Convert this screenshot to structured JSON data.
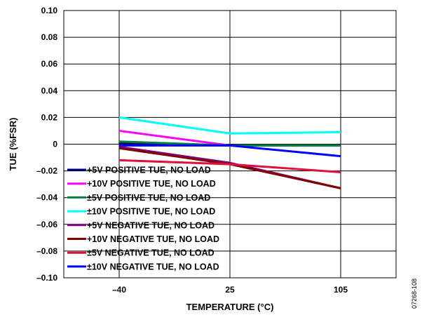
{
  "chart_data": {
    "type": "line",
    "xlabel": "TEMPERATURE (°C)",
    "ylabel": "TUE (%FSR)",
    "x": [
      -40,
      25,
      105
    ],
    "x_tick_labels": [
      "–40",
      "25",
      "105"
    ],
    "ylim": [
      -0.1,
      0.1
    ],
    "y_ticks": [
      0.1,
      0.08,
      0.06,
      0.04,
      0.02,
      0,
      -0.02,
      -0.04,
      -0.06,
      -0.08,
      -0.1
    ],
    "y_tick_labels": [
      "0.10",
      "0.08",
      "0.06",
      "0.04",
      "0.02",
      "0",
      "–0.02",
      "–0.04",
      "–0.06",
      "–0.08",
      "–0.10"
    ],
    "grid": true,
    "legend_position": "bottom-left",
    "series": [
      {
        "name": "+5V POSITIVE TUE, NO LOAD",
        "color": "#000080",
        "values": [
          0.001,
          -0.001,
          -0.001
        ]
      },
      {
        "name": "+10V POSITIVE TUE, NO LOAD",
        "color": "#ff00ff",
        "values": [
          0.01,
          -0.001,
          -0.001
        ]
      },
      {
        "name": "±5V POSITIVE TUE, NO LOAD",
        "color": "#008040",
        "values": [
          0.002,
          -0.001,
          -0.001
        ]
      },
      {
        "name": "±10V POSITIVE TUE, NO LOAD",
        "color": "#00ffff",
        "values": [
          0.02,
          0.008,
          0.009
        ]
      },
      {
        "name": "+5V NEGATIVE TUE, NO LOAD",
        "color": "#800080",
        "values": [
          -0.002,
          -0.014,
          -0.033
        ]
      },
      {
        "name": "+10V NEGATIVE TUE, NO LOAD",
        "color": "#800000",
        "values": [
          -0.003,
          -0.015,
          -0.033
        ]
      },
      {
        "name": "±5V NEGATIVE TUE, NO LOAD",
        "color": "#e0103c",
        "values": [
          -0.012,
          -0.015,
          -0.021
        ]
      },
      {
        "name": "±10V NEGATIVE TUE, NO LOAD",
        "color": "#0000ff",
        "values": [
          -0.001,
          -0.001,
          -0.009
        ]
      }
    ]
  },
  "figure_code": "07268-108"
}
